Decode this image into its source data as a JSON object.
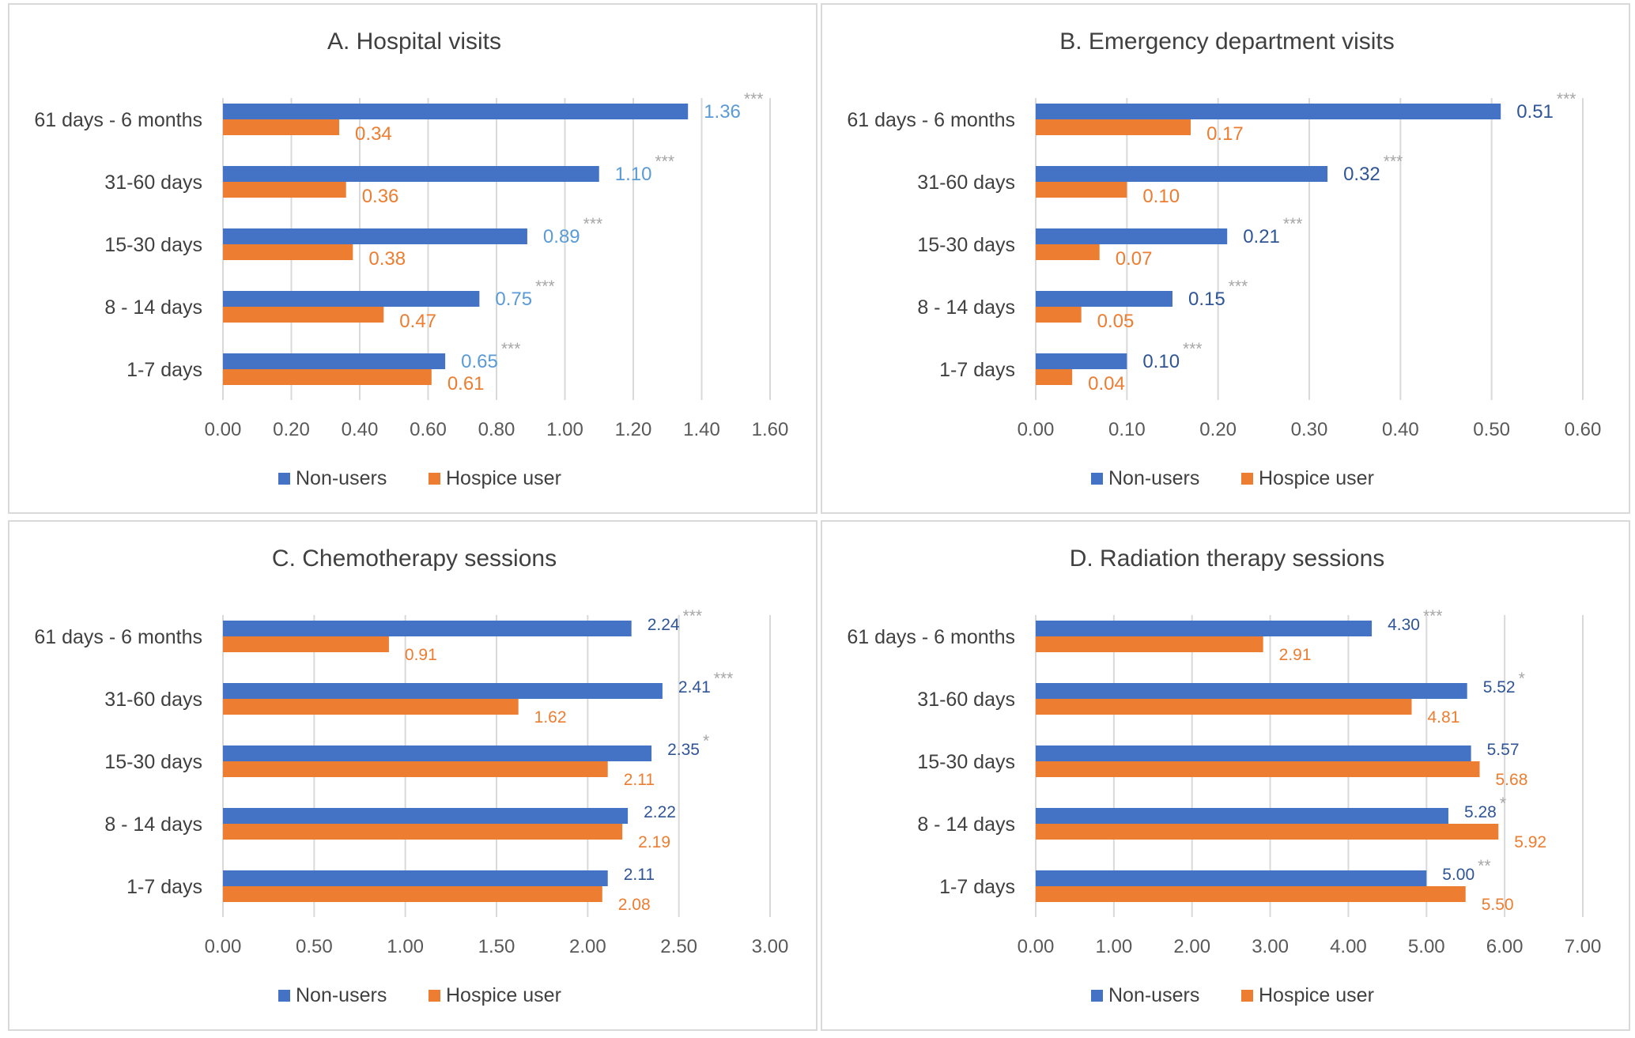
{
  "colors": {
    "nonusers_bar": "#4472c4",
    "hospice_bar": "#ed7d31",
    "label_light_blue": "#5b9bd5",
    "label_dark_blue": "#2f5597",
    "label_orange": "#ed7d31",
    "significance": "#a6a6a6",
    "gridline": "#d9d9d9"
  },
  "legend": {
    "series_1": "Non-users",
    "series_2": "Hospice user"
  },
  "chart_data": [
    {
      "type": "bar",
      "orientation": "horizontal",
      "title": "A. Hospital visits",
      "categories": [
        "61 days - 6 months",
        "31-60 days",
        "15-30 days",
        "8 - 14 days",
        "1-7 days"
      ],
      "series": [
        {
          "name": "Non-users",
          "values": [
            1.36,
            1.1,
            0.89,
            0.75,
            0.65
          ],
          "labels": [
            "1.36",
            "1.10",
            "0.89",
            "0.75",
            "0.65"
          ]
        },
        {
          "name": "Hospice user",
          "values": [
            0.34,
            0.36,
            0.38,
            0.47,
            0.61
          ],
          "labels": [
            "0.34",
            "0.36",
            "0.38",
            "0.47",
            "0.61"
          ]
        }
      ],
      "significance": [
        "***",
        "***",
        "***",
        "***",
        "***"
      ],
      "xlim": [
        0,
        1.6
      ],
      "ticks": [
        "0.00",
        "0.20",
        "0.40",
        "0.60",
        "0.80",
        "1.00",
        "1.20",
        "1.40",
        "1.60"
      ],
      "label_style": "light",
      "legend_position": "bottom"
    },
    {
      "type": "bar",
      "orientation": "horizontal",
      "title": "B. Emergency department visits",
      "categories": [
        "61 days - 6 months",
        "31-60 days",
        "15-30 days",
        "8 - 14 days",
        "1-7 days"
      ],
      "series": [
        {
          "name": "Non-users",
          "values": [
            0.51,
            0.32,
            0.21,
            0.15,
            0.1
          ],
          "labels": [
            "0.51",
            "0.32",
            "0.21",
            "0.15",
            "0.10"
          ]
        },
        {
          "name": "Hospice user",
          "values": [
            0.17,
            0.1,
            0.07,
            0.05,
            0.04
          ],
          "labels": [
            "0.17",
            "0.10",
            "0.07",
            "0.05",
            "0.04"
          ]
        }
      ],
      "significance": [
        "***",
        "***",
        "***",
        "***",
        "***"
      ],
      "xlim": [
        0,
        0.6
      ],
      "ticks": [
        "0.00",
        "0.10",
        "0.20",
        "0.30",
        "0.40",
        "0.50",
        "0.60"
      ],
      "label_style": "dark",
      "legend_position": "bottom"
    },
    {
      "type": "bar",
      "orientation": "horizontal",
      "title": "C. Chemotherapy sessions",
      "categories": [
        "61 days - 6 months",
        "31-60 days",
        "15-30 days",
        "8 - 14 days",
        "1-7 days"
      ],
      "series": [
        {
          "name": "Non-users",
          "values": [
            2.24,
            2.41,
            2.35,
            2.22,
            2.11
          ],
          "labels": [
            "2.24",
            "2.41",
            "2.35",
            "2.22",
            "2.11"
          ]
        },
        {
          "name": "Hospice user",
          "values": [
            0.91,
            1.62,
            2.11,
            2.19,
            2.08
          ],
          "labels": [
            "0.91",
            "1.62",
            "2.11",
            "2.19",
            "2.08"
          ]
        }
      ],
      "significance": [
        "***",
        "***",
        "*",
        "",
        ""
      ],
      "xlim": [
        0,
        3.0
      ],
      "ticks": [
        "0.00",
        "0.50",
        "1.00",
        "1.50",
        "2.00",
        "2.50",
        "3.00"
      ],
      "label_style": "dark",
      "legend_position": "bottom"
    },
    {
      "type": "bar",
      "orientation": "horizontal",
      "title": "D. Radiation therapy sessions",
      "categories": [
        "61 days - 6 months",
        "31-60 days",
        "15-30 days",
        "8 - 14 days",
        "1-7 days"
      ],
      "series": [
        {
          "name": "Non-users",
          "values": [
            4.3,
            5.52,
            5.57,
            5.28,
            5.0
          ],
          "labels": [
            "4.30",
            "5.52",
            "5.57",
            "5.28",
            "5.00"
          ]
        },
        {
          "name": "Hospice user",
          "values": [
            2.91,
            4.81,
            5.68,
            5.92,
            5.5
          ],
          "labels": [
            "2.91",
            "4.81",
            "5.68",
            "5.92",
            "5.50"
          ]
        }
      ],
      "significance": [
        "***",
        "*",
        "",
        "*",
        "**"
      ],
      "xlim": [
        0,
        7.0
      ],
      "ticks": [
        "0.00",
        "1.00",
        "2.00",
        "3.00",
        "4.00",
        "5.00",
        "6.00",
        "7.00"
      ],
      "label_style": "dark",
      "legend_position": "bottom"
    }
  ]
}
